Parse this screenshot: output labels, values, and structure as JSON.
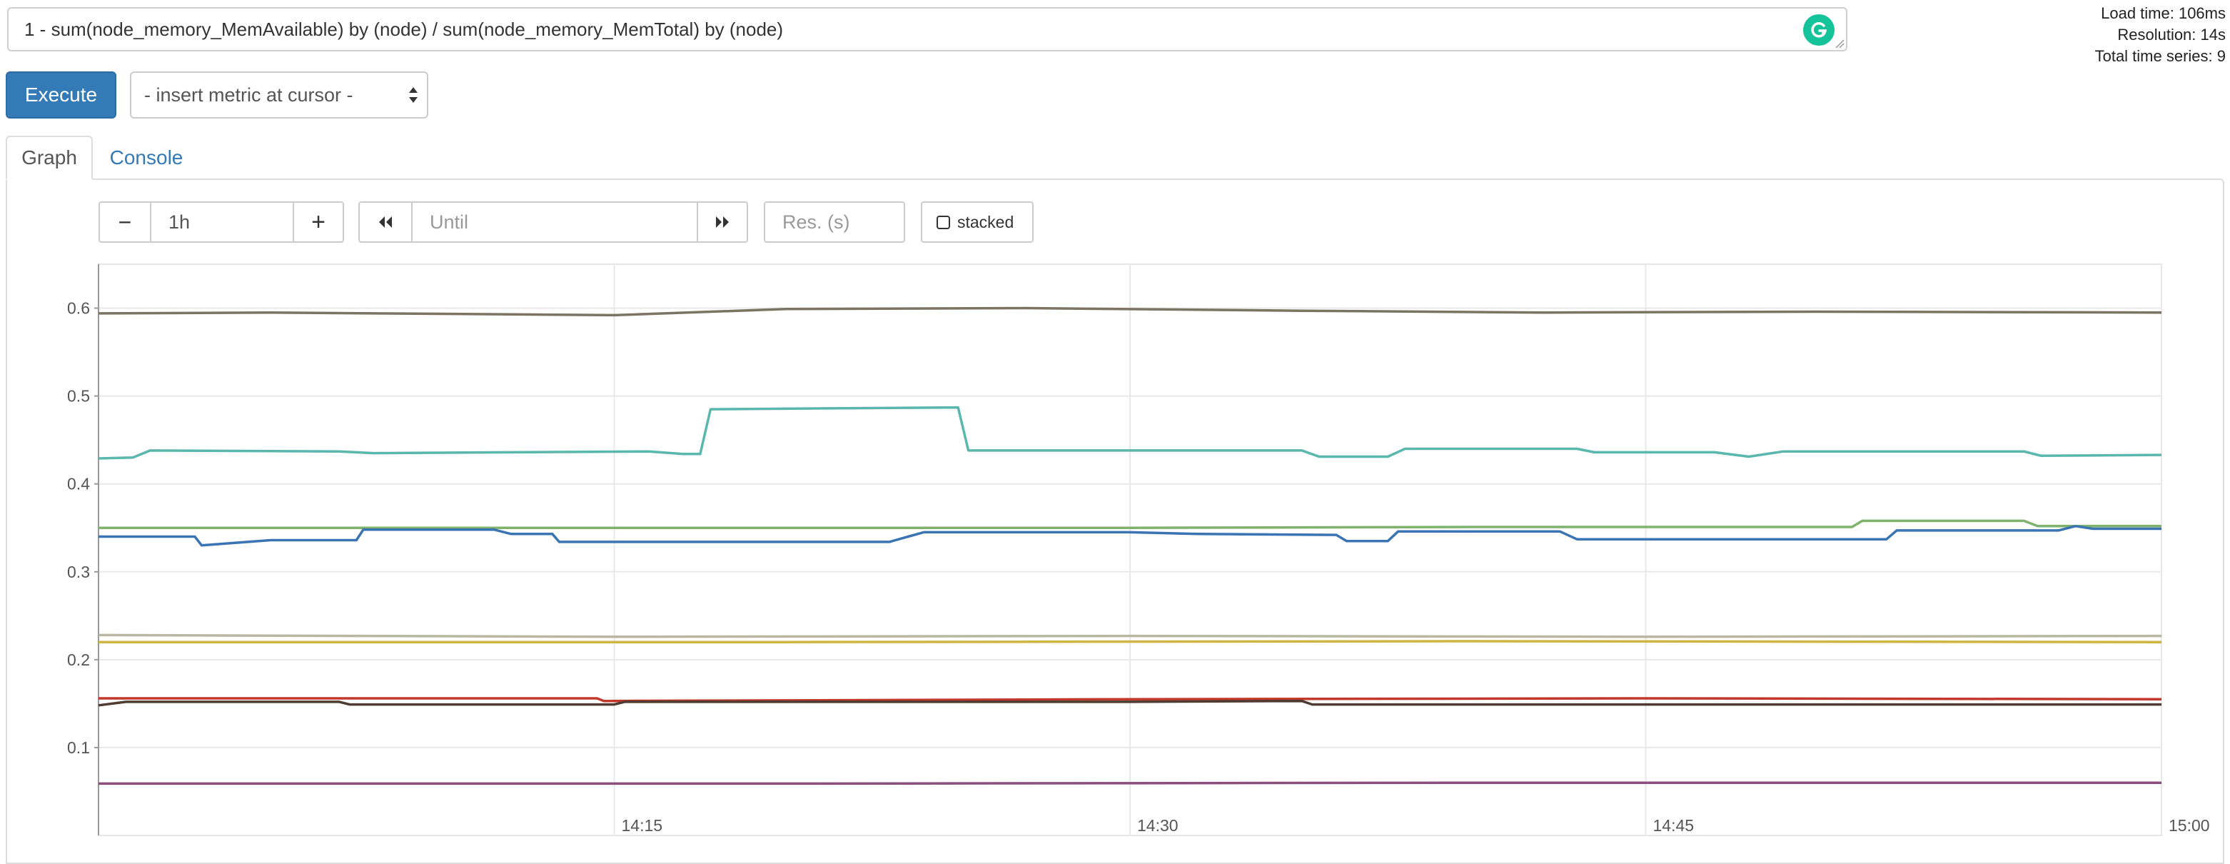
{
  "query": {
    "expression": "1 - sum(node_memory_MemAvailable) by (node) / sum(node_memory_MemTotal) by (node)"
  },
  "stats": {
    "load_time": "Load time: 106ms",
    "resolution": "Resolution: 14s",
    "total_series": "Total time series: 9"
  },
  "toolbar": {
    "execute_label": "Execute",
    "metric_select_value": "- insert metric at cursor -"
  },
  "tabs": {
    "graph": "Graph",
    "console": "Console"
  },
  "graph_controls": {
    "range_minus": "−",
    "range_value": "1h",
    "range_plus": "+",
    "until_placeholder": "Until",
    "res_placeholder": "Res. (s)",
    "stacked_label": "stacked"
  },
  "icons": {
    "grammarly": "grammarly-icon",
    "back": "double-chevron-left-icon",
    "forward": "double-chevron-right-icon"
  },
  "colors": {
    "accent": "#337ab7",
    "grammarly": "#15c39a"
  },
  "chart_data": {
    "type": "line",
    "ylim": [
      0,
      0.65
    ],
    "xlim_minutes": [
      0,
      60
    ],
    "x_ticks": [
      {
        "label": "14:15",
        "minute": 15
      },
      {
        "label": "14:30",
        "minute": 30
      },
      {
        "label": "14:45",
        "minute": 45
      },
      {
        "label": "15:00",
        "minute": 60
      }
    ],
    "y_ticks": [
      "0.1",
      "0.2",
      "0.3",
      "0.4",
      "0.5",
      "0.6"
    ],
    "grid": true,
    "series": [
      {
        "color": "#7a7462",
        "points": [
          [
            0,
            0.594
          ],
          [
            5,
            0.595
          ],
          [
            15,
            0.592
          ],
          [
            20,
            0.599
          ],
          [
            27,
            0.6
          ],
          [
            35,
            0.597
          ],
          [
            42,
            0.595
          ],
          [
            50,
            0.596
          ],
          [
            60,
            0.595
          ]
        ]
      },
      {
        "color": "#5ab7ad",
        "points": [
          [
            0,
            0.429
          ],
          [
            1,
            0.43
          ],
          [
            1.5,
            0.438
          ],
          [
            7,
            0.437
          ],
          [
            8,
            0.435
          ],
          [
            16,
            0.437
          ],
          [
            17,
            0.434
          ],
          [
            17.5,
            0.434
          ],
          [
            17.8,
            0.485
          ],
          [
            25,
            0.487
          ],
          [
            25.3,
            0.438
          ],
          [
            35,
            0.438
          ],
          [
            35.5,
            0.431
          ],
          [
            37.5,
            0.431
          ],
          [
            38,
            0.44
          ],
          [
            43,
            0.44
          ],
          [
            43.5,
            0.436
          ],
          [
            47,
            0.436
          ],
          [
            48,
            0.431
          ],
          [
            49,
            0.437
          ],
          [
            56,
            0.437
          ],
          [
            56.5,
            0.432
          ],
          [
            60,
            0.433
          ]
        ]
      },
      {
        "color": "#7eb26d",
        "points": [
          [
            0,
            0.35
          ],
          [
            15,
            0.35
          ],
          [
            30,
            0.35
          ],
          [
            40,
            0.351
          ],
          [
            51,
            0.351
          ],
          [
            51.3,
            0.358
          ],
          [
            56,
            0.358
          ],
          [
            56.4,
            0.352
          ],
          [
            60,
            0.352
          ]
        ]
      },
      {
        "color": "#3a74b3",
        "points": [
          [
            0,
            0.34
          ],
          [
            2.8,
            0.34
          ],
          [
            3,
            0.33
          ],
          [
            5,
            0.336
          ],
          [
            7.5,
            0.336
          ],
          [
            7.7,
            0.348
          ],
          [
            11.5,
            0.348
          ],
          [
            12,
            0.343
          ],
          [
            13.2,
            0.343
          ],
          [
            13.4,
            0.334
          ],
          [
            23,
            0.334
          ],
          [
            24,
            0.345
          ],
          [
            30,
            0.345
          ],
          [
            32,
            0.343
          ],
          [
            36,
            0.342
          ],
          [
            36.3,
            0.335
          ],
          [
            37.5,
            0.335
          ],
          [
            37.8,
            0.346
          ],
          [
            42.5,
            0.346
          ],
          [
            43,
            0.337
          ],
          [
            52,
            0.337
          ],
          [
            52.3,
            0.347
          ],
          [
            57,
            0.347
          ],
          [
            57.5,
            0.352
          ],
          [
            58,
            0.349
          ],
          [
            60,
            0.349
          ]
        ]
      },
      {
        "color": "#b8b8a2",
        "points": [
          [
            0,
            0.228
          ],
          [
            15,
            0.226
          ],
          [
            30,
            0.227
          ],
          [
            45,
            0.226
          ],
          [
            60,
            0.227
          ]
        ]
      },
      {
        "color": "#cfb544",
        "points": [
          [
            0,
            0.22
          ],
          [
            20,
            0.22
          ],
          [
            40,
            0.221
          ],
          [
            60,
            0.22
          ]
        ]
      },
      {
        "color": "#c0392b",
        "points": [
          [
            0,
            0.156
          ],
          [
            14.5,
            0.156
          ],
          [
            14.7,
            0.153
          ],
          [
            30,
            0.155
          ],
          [
            45,
            0.156
          ],
          [
            60,
            0.155
          ]
        ]
      },
      {
        "color": "#4e3b31",
        "points": [
          [
            0,
            0.148
          ],
          [
            0.8,
            0.152
          ],
          [
            7,
            0.152
          ],
          [
            7.3,
            0.149
          ],
          [
            15,
            0.149
          ],
          [
            15.3,
            0.152
          ],
          [
            30,
            0.152
          ],
          [
            35,
            0.153
          ],
          [
            35.3,
            0.149
          ],
          [
            45,
            0.149
          ],
          [
            60,
            0.149
          ]
        ]
      },
      {
        "color": "#8a4f7d",
        "points": [
          [
            0,
            0.059
          ],
          [
            20,
            0.059
          ],
          [
            40,
            0.06
          ],
          [
            60,
            0.06
          ]
        ]
      }
    ]
  }
}
